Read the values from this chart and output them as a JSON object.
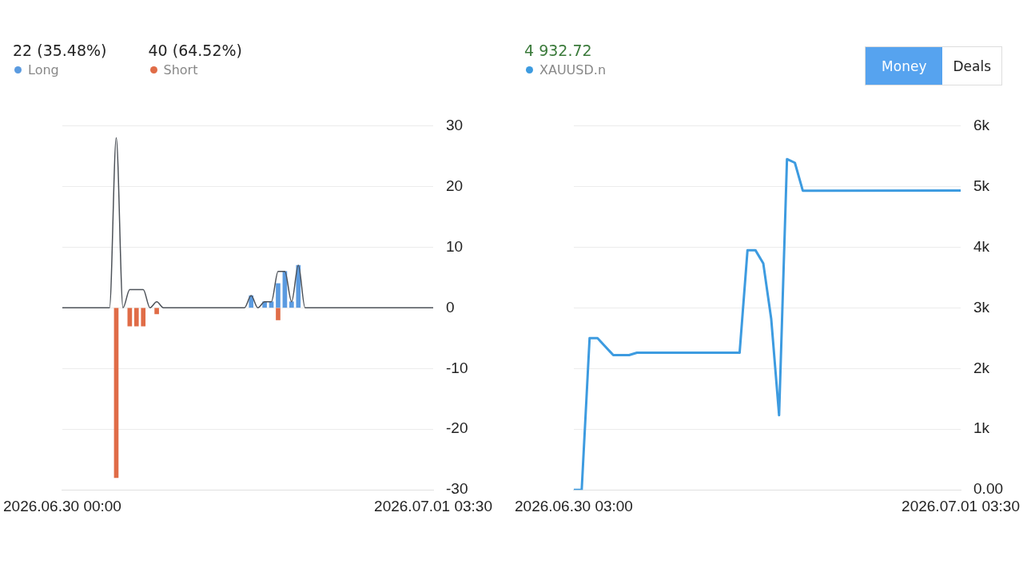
{
  "chart_data": [
    {
      "type": "bar",
      "stacked": true,
      "legend": "top left",
      "grid": "y",
      "marker": "none",
      "line_style": "solid",
      "annotations": [
        "22 (35.48%)",
        "40 (64.52%)"
      ],
      "categories": [
        "2026.06.30 00:00",
        null,
        null,
        null,
        null,
        null,
        null,
        null,
        null,
        null,
        null,
        null,
        null,
        null,
        null,
        null,
        null,
        null,
        null,
        null,
        null,
        null,
        null,
        null,
        null,
        null,
        null,
        null,
        null,
        null,
        null,
        null,
        null,
        null,
        null,
        null,
        null,
        null,
        null,
        null,
        null,
        null,
        null,
        null,
        null,
        null,
        null,
        null,
        null,
        null,
        null,
        null,
        null,
        null,
        null,
        "2026.07.01 03:30"
      ],
      "ylim": [
        -30,
        30
      ],
      "yticks": [
        -30,
        -20,
        -10,
        0,
        10,
        20,
        30
      ],
      "series": [
        {
          "name": "Long",
          "color": "#5b9be0",
          "values": [
            null,
            null,
            null,
            null,
            null,
            null,
            null,
            null,
            null,
            null,
            null,
            null,
            null,
            null,
            null,
            null,
            null,
            null,
            null,
            null,
            null,
            null,
            null,
            null,
            null,
            null,
            null,
            null,
            2,
            null,
            1,
            1,
            4,
            6,
            1,
            7,
            null,
            null,
            null,
            null,
            null,
            null,
            null,
            null,
            null,
            null,
            null,
            null,
            null,
            null,
            null,
            null,
            null,
            null,
            null,
            null
          ]
        },
        {
          "name": "Short",
          "color": "#e06c47",
          "values": [
            null,
            null,
            null,
            null,
            null,
            null,
            null,
            null,
            -28,
            null,
            -3,
            -3,
            -3,
            null,
            -1,
            null,
            null,
            null,
            null,
            null,
            null,
            null,
            null,
            null,
            null,
            null,
            null,
            null,
            null,
            null,
            null,
            null,
            -2,
            null,
            null,
            null,
            null,
            null,
            null,
            null,
            null,
            null,
            null,
            null,
            null,
            null,
            null,
            null,
            null,
            null,
            null,
            null,
            null,
            null,
            null,
            null
          ]
        },
        {
          "type": "line",
          "color": "#4d5259",
          "values": [
            0,
            0,
            0,
            0,
            0,
            0,
            0,
            0,
            28,
            0,
            3,
            3,
            3,
            0,
            1,
            0,
            0,
            0,
            0,
            0,
            0,
            0,
            0,
            0,
            0,
            0,
            0,
            0,
            2,
            0,
            1,
            1,
            6,
            6,
            1,
            7,
            0,
            0,
            0,
            0,
            0,
            0,
            0,
            0,
            0,
            0,
            0,
            0,
            0,
            0,
            0,
            0,
            0,
            0,
            0,
            0
          ]
        }
      ]
    },
    {
      "type": "line",
      "legend": "top left",
      "grid": "y",
      "marker": "none",
      "line_style": "solid",
      "annotations": [
        "4 932.72",
        "Money",
        "Deals"
      ],
      "categories": [
        "2026.06.30 03:00",
        null,
        null,
        null,
        null,
        null,
        null,
        null,
        null,
        null,
        null,
        null,
        null,
        null,
        null,
        null,
        null,
        null,
        null,
        null,
        null,
        null,
        null,
        null,
        null,
        null,
        null,
        null,
        null,
        null,
        null,
        null,
        null,
        null,
        null,
        null,
        null,
        null,
        null,
        null,
        null,
        null,
        null,
        null,
        null,
        null,
        null,
        null,
        null,
        "2026.07.01 03:30"
      ],
      "ylim": [
        0,
        6000
      ],
      "yticks": [
        {
          "value": 0,
          "label": "0.00"
        },
        {
          "value": 1000,
          "label": "1k"
        },
        {
          "value": 2000,
          "label": "2k"
        },
        {
          "value": 3000,
          "label": "3k"
        },
        {
          "value": 4000,
          "label": "4k"
        },
        {
          "value": 5000,
          "label": "5k"
        },
        {
          "value": 6000,
          "label": "6k"
        }
      ],
      "series": [
        {
          "name": "XAUUSD.n",
          "color": "#3d9be0",
          "values": [
            0,
            0,
            2500,
            2500,
            null,
            2220,
            null,
            2220,
            2260,
            null,
            null,
            null,
            null,
            null,
            null,
            null,
            null,
            null,
            null,
            null,
            null,
            2260,
            3950,
            3950,
            3730,
            2820,
            1230,
            5450,
            5390,
            4930,
            null,
            null,
            null,
            null,
            null,
            null,
            null,
            null,
            null,
            null,
            null,
            null,
            null,
            null,
            null,
            null,
            null,
            null,
            null,
            4932.72
          ]
        }
      ]
    }
  ]
}
